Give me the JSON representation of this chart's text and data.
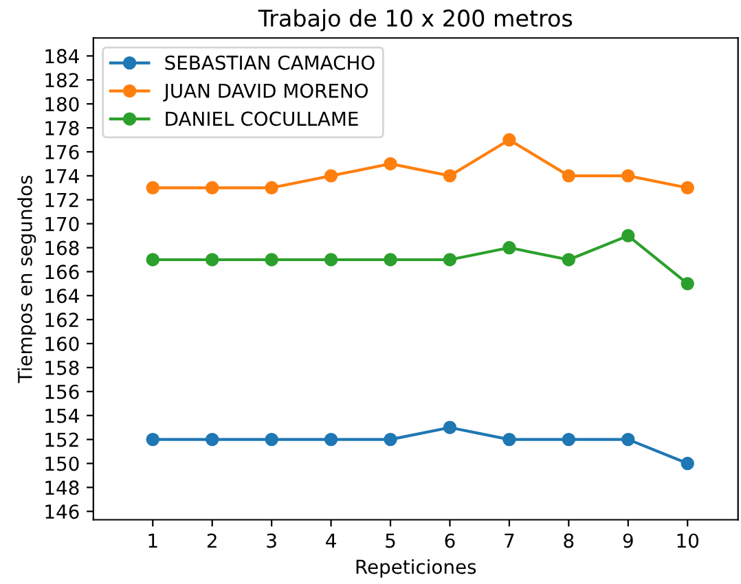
{
  "chart_data": {
    "type": "line",
    "title": "Trabajo de 10 x 200 metros",
    "xlabel": "Repeticiones",
    "ylabel": "Tiempos en segundos",
    "x": [
      1,
      2,
      3,
      4,
      5,
      6,
      7,
      8,
      9,
      10
    ],
    "series": [
      {
        "name": "SEBASTIAN CAMACHO",
        "color": "#1f77b4",
        "values": [
          152,
          152,
          152,
          152,
          152,
          153,
          152,
          152,
          152,
          150
        ]
      },
      {
        "name": "JUAN DAVID MORENO",
        "color": "#ff7f0e",
        "values": [
          173,
          173,
          173,
          174,
          175,
          174,
          177,
          174,
          174,
          173
        ]
      },
      {
        "name": "DANIEL COCULLAME",
        "color": "#2ca02c",
        "values": [
          167,
          167,
          167,
          167,
          167,
          167,
          168,
          167,
          169,
          165
        ]
      }
    ],
    "xlim": [
      0,
      10.85
    ],
    "xticks": [
      1,
      2,
      3,
      4,
      5,
      6,
      7,
      8,
      9,
      10
    ],
    "ylim": [
      145.3,
      185.5
    ],
    "yticks": [
      146,
      148,
      150,
      152,
      154,
      156,
      158,
      160,
      162,
      164,
      166,
      168,
      170,
      172,
      174,
      176,
      178,
      180,
      182,
      184
    ],
    "marker": "circle",
    "line_style": "solid",
    "legend": "top left",
    "grid": false
  }
}
